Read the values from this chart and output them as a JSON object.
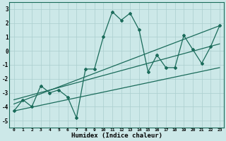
{
  "xlabel": "Humidex (Indice chaleur)",
  "ylabel": "",
  "bg_color": "#cce8e8",
  "grid_color": "#aacece",
  "line_color": "#1a6b5a",
  "xlim": [
    -0.5,
    23.5
  ],
  "ylim": [
    -5.5,
    3.5
  ],
  "xticks": [
    0,
    1,
    2,
    3,
    4,
    5,
    6,
    7,
    8,
    9,
    10,
    11,
    12,
    13,
    14,
    15,
    16,
    17,
    18,
    19,
    20,
    21,
    22,
    23
  ],
  "yticks": [
    -5,
    -4,
    -3,
    -2,
    -1,
    0,
    1,
    2,
    3
  ],
  "main_x": [
    0,
    1,
    2,
    3,
    4,
    5,
    6,
    7,
    8,
    9,
    10,
    11,
    12,
    13,
    14,
    15,
    16,
    17,
    18,
    19,
    20,
    21,
    22,
    23
  ],
  "main_y": [
    -4.3,
    -3.5,
    -4.0,
    -2.5,
    -3.0,
    -2.8,
    -3.3,
    -4.8,
    -1.3,
    -1.3,
    1.0,
    2.8,
    2.2,
    2.7,
    1.5,
    -1.5,
    -0.3,
    -1.2,
    -1.2,
    1.1,
    0.1,
    -0.9,
    0.3,
    1.8
  ],
  "trend1_x": [
    0,
    23
  ],
  "trend1_y": [
    -3.5,
    0.5
  ],
  "trend2_x": [
    0,
    23
  ],
  "trend2_y": [
    -4.3,
    -1.2
  ],
  "trend3_x": [
    0,
    23
  ],
  "trend3_y": [
    -3.8,
    1.8
  ]
}
